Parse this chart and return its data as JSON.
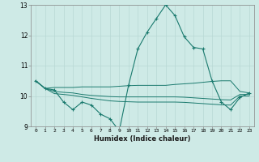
{
  "xlabel": "Humidex (Indice chaleur)",
  "ylabel": "",
  "bg_color": "#ceeae6",
  "grid_color": "#b8d8d4",
  "line_color": "#1a7a6e",
  "xlim": [
    -0.5,
    23.5
  ],
  "ylim": [
    9,
    13
  ],
  "yticks": [
    9,
    10,
    11,
    12,
    13
  ],
  "xticks": [
    0,
    1,
    2,
    3,
    4,
    5,
    6,
    7,
    8,
    9,
    10,
    11,
    12,
    13,
    14,
    15,
    16,
    17,
    18,
    19,
    20,
    21,
    22,
    23
  ],
  "series": {
    "main_line": [
      10.5,
      10.25,
      10.2,
      9.8,
      9.55,
      9.8,
      9.7,
      9.4,
      9.25,
      8.85,
      10.35,
      11.55,
      12.1,
      12.55,
      13.0,
      12.65,
      11.95,
      11.6,
      11.55,
      10.5,
      9.8,
      9.55,
      9.95,
      10.1
    ],
    "upper_flat": [
      10.5,
      10.25,
      10.28,
      10.28,
      10.28,
      10.3,
      10.3,
      10.3,
      10.3,
      10.32,
      10.34,
      10.35,
      10.35,
      10.35,
      10.35,
      10.38,
      10.4,
      10.42,
      10.45,
      10.48,
      10.5,
      10.5,
      10.15,
      10.1
    ],
    "mid_flat": [
      10.5,
      10.25,
      10.15,
      10.12,
      10.1,
      10.05,
      10.02,
      10.0,
      9.98,
      9.97,
      9.97,
      9.97,
      9.97,
      9.97,
      9.97,
      9.97,
      9.96,
      9.94,
      9.92,
      9.9,
      9.88,
      9.87,
      10.05,
      10.05
    ],
    "lower_flat": [
      10.5,
      10.25,
      10.08,
      10.05,
      10.02,
      9.97,
      9.92,
      9.88,
      9.84,
      9.82,
      9.81,
      9.8,
      9.8,
      9.8,
      9.8,
      9.8,
      9.79,
      9.77,
      9.75,
      9.73,
      9.71,
      9.7,
      10.0,
      10.0
    ]
  }
}
